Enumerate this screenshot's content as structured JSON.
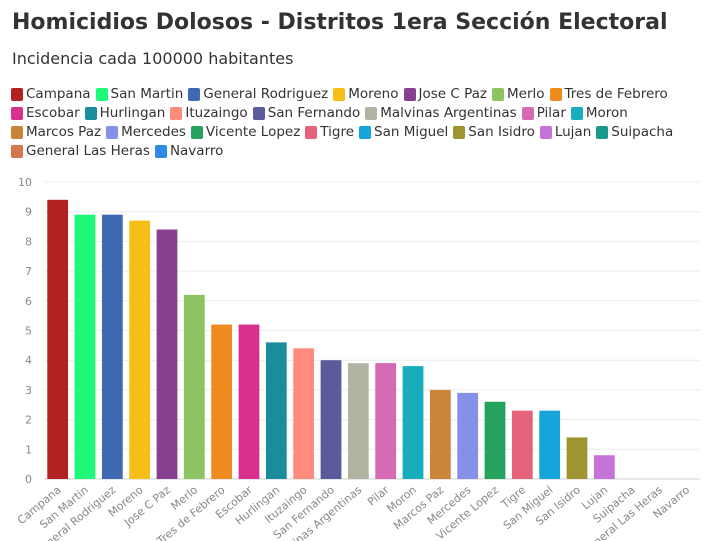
{
  "chart_data": {
    "type": "bar",
    "title": "Homicidios Dolosos - Distritos 1era Sección Electoral",
    "subtitle": "Incidencia cada 100000 habitantes",
    "xlabel": "",
    "ylabel": "",
    "ylim": [
      0,
      10
    ],
    "yticks": [
      0,
      1,
      2,
      3,
      4,
      5,
      6,
      7,
      8,
      9,
      10
    ],
    "grid": true,
    "legend_position": "top",
    "categories": [
      "Campana",
      "San Martin",
      "General Rodriguez",
      "Moreno",
      "Jose C Paz",
      "Merlo",
      "Tres de Febrero",
      "Escobar",
      "Hurlingan",
      "Ituzaingo",
      "San Fernando",
      "Malvinas Argentinas",
      "Pilar",
      "Moron",
      "Marcos Paz",
      "Mercedes",
      "Vicente Lopez",
      "Tigre",
      "San Miguel",
      "San Isidro",
      "Lujan",
      "Suipacha",
      "General Las Heras",
      "Navarro"
    ],
    "values": [
      9.4,
      8.9,
      8.9,
      8.7,
      8.4,
      6.2,
      5.2,
      5.2,
      4.6,
      4.4,
      4.0,
      3.9,
      3.9,
      3.8,
      3.0,
      2.9,
      2.6,
      2.3,
      2.3,
      1.4,
      0.8,
      0,
      0,
      0
    ],
    "colors": [
      "#b22222",
      "#1ef97a",
      "#3f69b3",
      "#f5bf18",
      "#874090",
      "#8bc461",
      "#ee8a1e",
      "#d8308e",
      "#1b8c9c",
      "#fe8b7d",
      "#5b5a9a",
      "#b1b4a2",
      "#d46bb4",
      "#17adbc",
      "#c9853a",
      "#8690e8",
      "#25a35e",
      "#e5637a",
      "#16a5da",
      "#9f9530",
      "#c673d8",
      "#1a9a8c",
      "#d3784e",
      "#2e8ce4"
    ]
  }
}
